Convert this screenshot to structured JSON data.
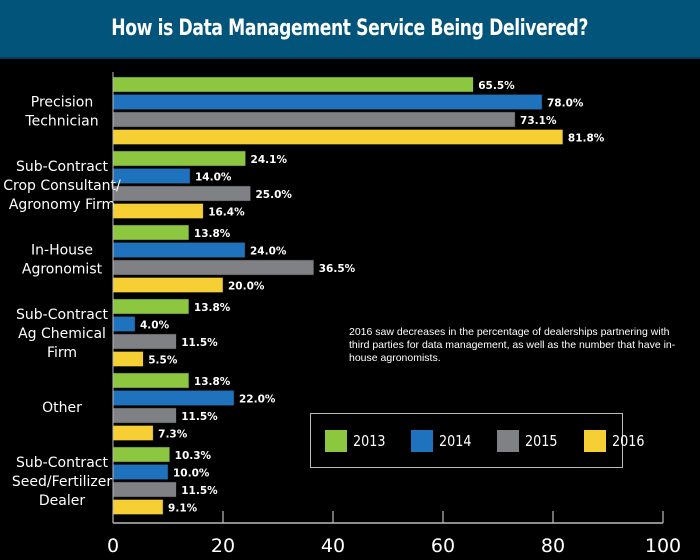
{
  "header": {
    "title": "How is Data Management Service Being Delivered?"
  },
  "annotation": "2016 saw decreases in the percentage of dealerships partnering with third parties for data management, as well as the number that have in-house agronomists.",
  "chart_data": {
    "type": "bar",
    "orientation": "horizontal",
    "title": "How is Data Management Service Being Delivered?",
    "xlabel": "",
    "ylabel": "",
    "xlim": [
      0,
      100
    ],
    "xticks": [
      0,
      20,
      40,
      60,
      80,
      100
    ],
    "grid": false,
    "legend_position": "bottom-right",
    "categories": [
      [
        "Precision",
        "Technician"
      ],
      [
        "Sub-Contract",
        "Crop Consultant/",
        "Agronomy Firm"
      ],
      [
        "In-House",
        "Agronomist"
      ],
      [
        "Sub-Contract",
        "Ag Chemical",
        "Firm"
      ],
      [
        "Other"
      ],
      [
        "Sub-Contract",
        "Seed/Fertilizer",
        "Dealer"
      ]
    ],
    "series": [
      {
        "name": "2013",
        "color": "#8dc63f",
        "values": [
          65.5,
          24.1,
          13.8,
          13.8,
          13.8,
          10.3
        ],
        "labels": [
          "65.5%",
          "24.1%",
          "13.8%",
          "13.8%",
          "13.8%",
          "10.3%"
        ]
      },
      {
        "name": "2014",
        "color": "#1f73be",
        "values": [
          78.0,
          14.0,
          24.0,
          4.0,
          22.0,
          10.0
        ],
        "labels": [
          "78.0%",
          "14.0%",
          "24.0%",
          "4.0%",
          "22.0%",
          "10.0%"
        ]
      },
      {
        "name": "2015",
        "color": "#808184",
        "values": [
          73.1,
          25.0,
          36.5,
          11.5,
          11.5,
          11.5
        ],
        "labels": [
          "73.1%",
          "25.0%",
          "36.5%",
          "11.5%",
          "11.5%",
          "11.5%"
        ]
      },
      {
        "name": "2016",
        "color": "#f6cf35",
        "values": [
          81.8,
          16.4,
          20.0,
          5.5,
          7.3,
          9.1
        ],
        "labels": [
          "81.8%",
          "16.4%",
          "20.0%",
          "5.5%",
          "7.3%",
          "9.1%"
        ]
      }
    ]
  }
}
